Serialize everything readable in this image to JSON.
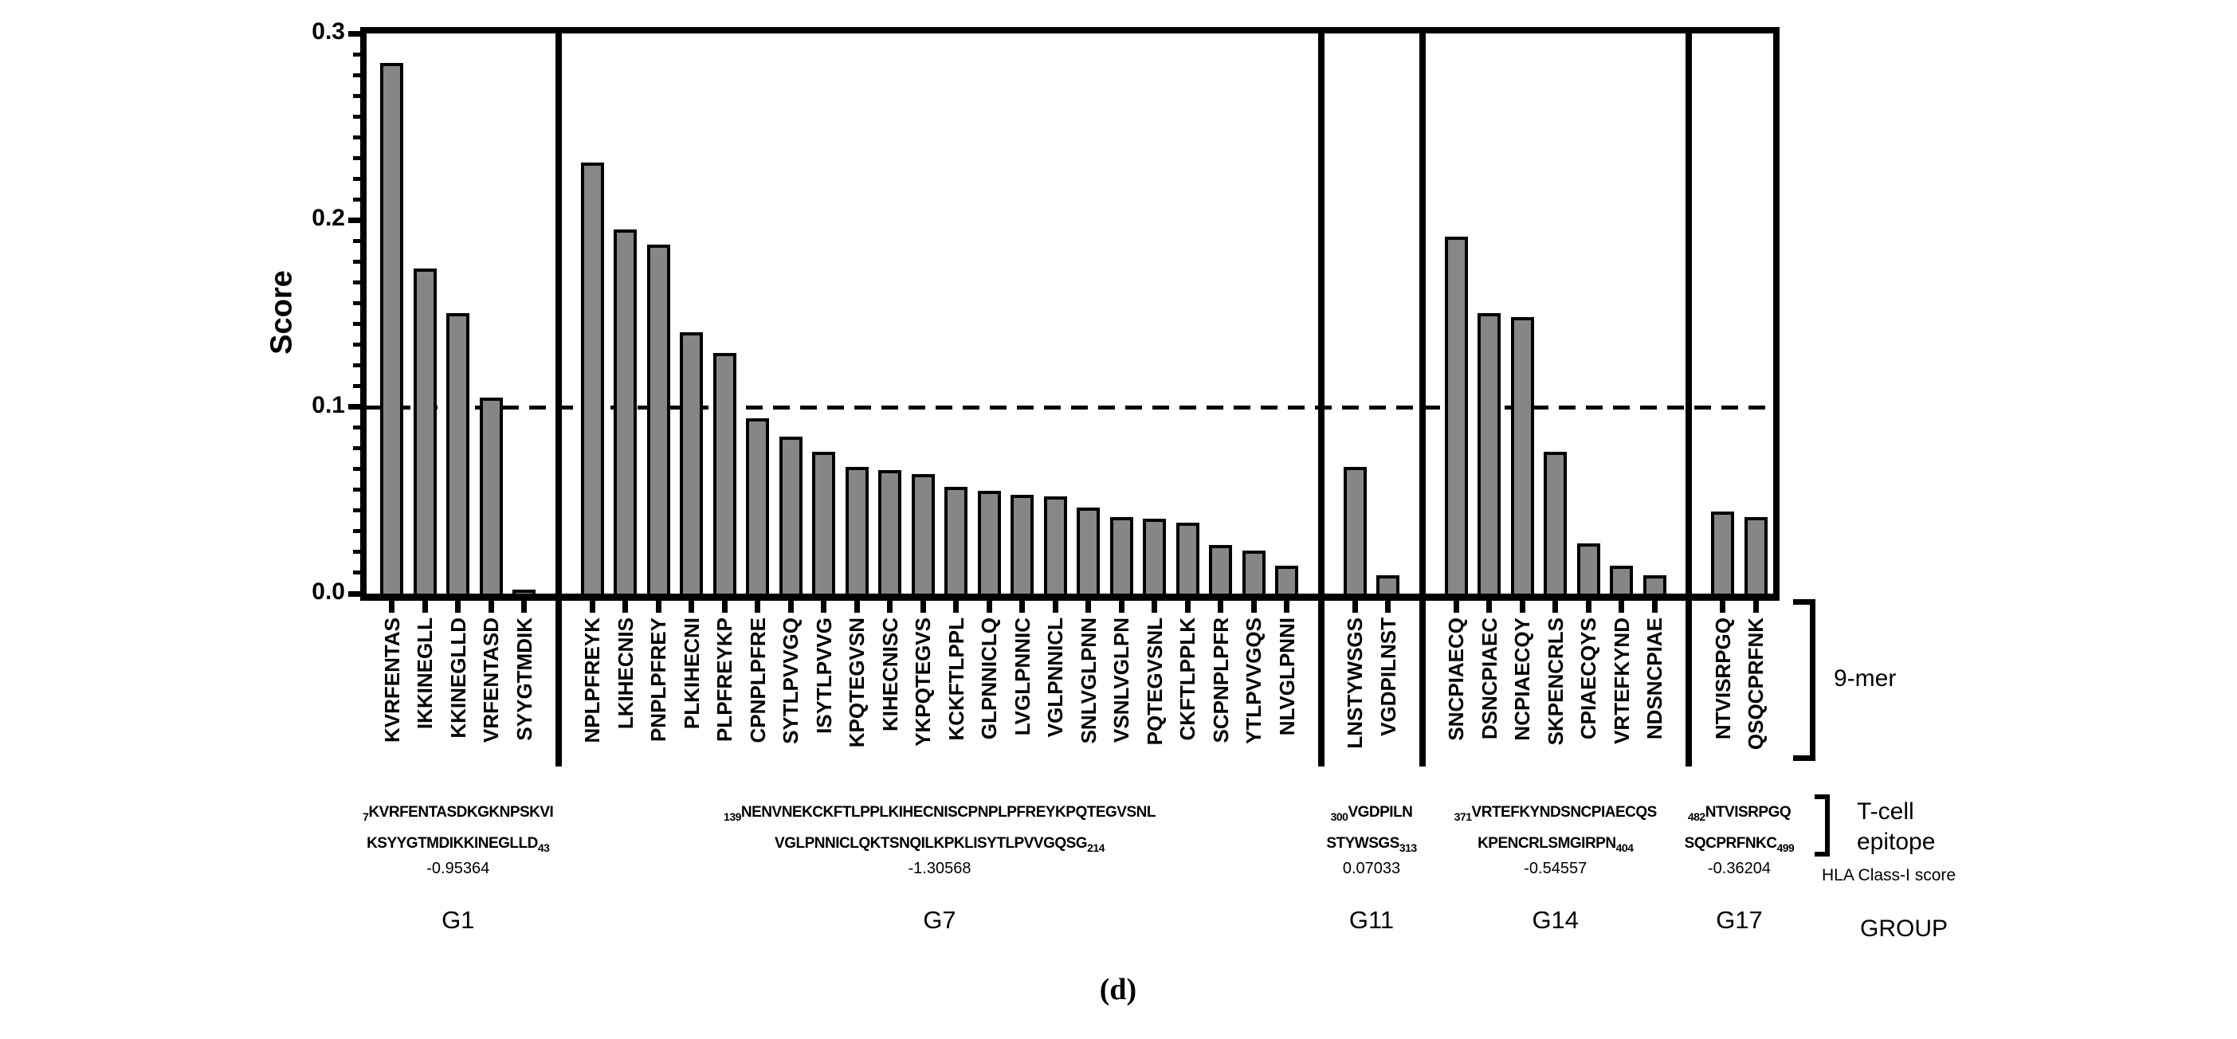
{
  "figure": {
    "caption": "(d)",
    "y_title": "Score",
    "side_labels": {
      "nine_mer": "9-mer",
      "t_cell_line1": "T-cell",
      "t_cell_line2": "epitope",
      "hla": "HLA Class-I score",
      "group": "GROUP"
    }
  },
  "chart_data": {
    "type": "bar",
    "title": "",
    "xlabel": "",
    "ylabel": "Score",
    "ylim": [
      0,
      0.3
    ],
    "y_ticks": [
      "0.3",
      "0.2",
      "0.1",
      "0.0"
    ],
    "dashed_threshold": 0.1,
    "bar_color": "#868686",
    "grid": "off",
    "legend": "none",
    "groups": [
      {
        "name": "G1",
        "hla_class_i_score": "-0.95364",
        "epitope": {
          "start_sub": "7",
          "line1": "KVRFENTASDKGKNPSKVI",
          "line2": "KSYYGTMDIKKINEGLLD",
          "end_sub": "43"
        },
        "bars": [
          {
            "label": "KVRFENTAS",
            "value": 0.284
          },
          {
            "label": "IKKINEGLL",
            "value": 0.174
          },
          {
            "label": "KKINEGLLD",
            "value": 0.15
          },
          {
            "label": "VRFENTASD",
            "value": 0.105
          },
          {
            "label": "SYYGTMDIK",
            "value": 0.002
          }
        ]
      },
      {
        "name": "G7",
        "hla_class_i_score": "-1.30568",
        "epitope": {
          "start_sub": "139",
          "line1": "NENVNEKCKFTLPPLKIHECNISCPNPLPFREYKPQTEGVSNL",
          "line2": "VGLPNNICLQKTSNQILKPKLISYTLPVVGQSG",
          "end_sub": "214"
        },
        "bars": [
          {
            "label": "NPLPFREYK",
            "value": 0.231
          },
          {
            "label": "LKIHECNIS",
            "value": 0.195
          },
          {
            "label": "PNPLPFREY",
            "value": 0.187
          },
          {
            "label": "PLKIHECNI",
            "value": 0.14
          },
          {
            "label": "PLPFREYKP",
            "value": 0.129
          },
          {
            "label": "CPNPLPFRE",
            "value": 0.094
          },
          {
            "label": "SYTLPVVGQ",
            "value": 0.084
          },
          {
            "label": "ISYTLPVVG",
            "value": 0.076
          },
          {
            "label": "KPQTEGVSN",
            "value": 0.068
          },
          {
            "label": "KIHECNISC",
            "value": 0.066
          },
          {
            "label": "YKPQTEGVS",
            "value": 0.064
          },
          {
            "label": "KCKFTLPPL",
            "value": 0.057
          },
          {
            "label": "GLPNNICLQ",
            "value": 0.055
          },
          {
            "label": "LVGLPNNIC",
            "value": 0.053
          },
          {
            "label": "VGLPNNICL",
            "value": 0.052
          },
          {
            "label": "SNLVGLPNN",
            "value": 0.046
          },
          {
            "label": "VSNLVGLPN",
            "value": 0.041
          },
          {
            "label": "PQTEGVSNL",
            "value": 0.04
          },
          {
            "label": "CKFTLPPLK",
            "value": 0.038
          },
          {
            "label": "SCPNPLPFR",
            "value": 0.026
          },
          {
            "label": "YTLPVVGQS",
            "value": 0.023
          },
          {
            "label": "NLVGLPNNI",
            "value": 0.015
          }
        ]
      },
      {
        "name": "G11",
        "hla_class_i_score": "0.07033",
        "epitope": {
          "start_sub": "300",
          "line1": "VGDPILN",
          "line2": "STYWSGS",
          "end_sub": "313"
        },
        "bars": [
          {
            "label": "LNSTYWSGS",
            "value": 0.068
          },
          {
            "label": "VGDPILNST",
            "value": 0.01
          }
        ]
      },
      {
        "name": "G14",
        "hla_class_i_score": "-0.54557",
        "epitope": {
          "start_sub": "371",
          "line1": "VRTEFKYNDSNCPIAECQS",
          "line2": "KPENCRLSMGIRPN",
          "end_sub": "404"
        },
        "bars": [
          {
            "label": "SNCPIAECQ",
            "value": 0.191
          },
          {
            "label": "DSNCPIAEC",
            "value": 0.15
          },
          {
            "label": "NCPIAECQY",
            "value": 0.148
          },
          {
            "label": "SKPENCRLS",
            "value": 0.076
          },
          {
            "label": "CPIAECQYS",
            "value": 0.027
          },
          {
            "label": "VRTEFKYND",
            "value": 0.015
          },
          {
            "label": "NDSNCPIAE",
            "value": 0.01
          }
        ]
      },
      {
        "name": "G17",
        "hla_class_i_score": "-0.36204",
        "epitope": {
          "start_sub": "482",
          "line1": "NTVISRPGQ",
          "line2": "SQCPRFNKC",
          "end_sub": "499"
        },
        "bars": [
          {
            "label": "NTVISRPGQ",
            "value": 0.044
          },
          {
            "label": "QSQCPRFNK",
            "value": 0.041
          }
        ]
      }
    ]
  }
}
